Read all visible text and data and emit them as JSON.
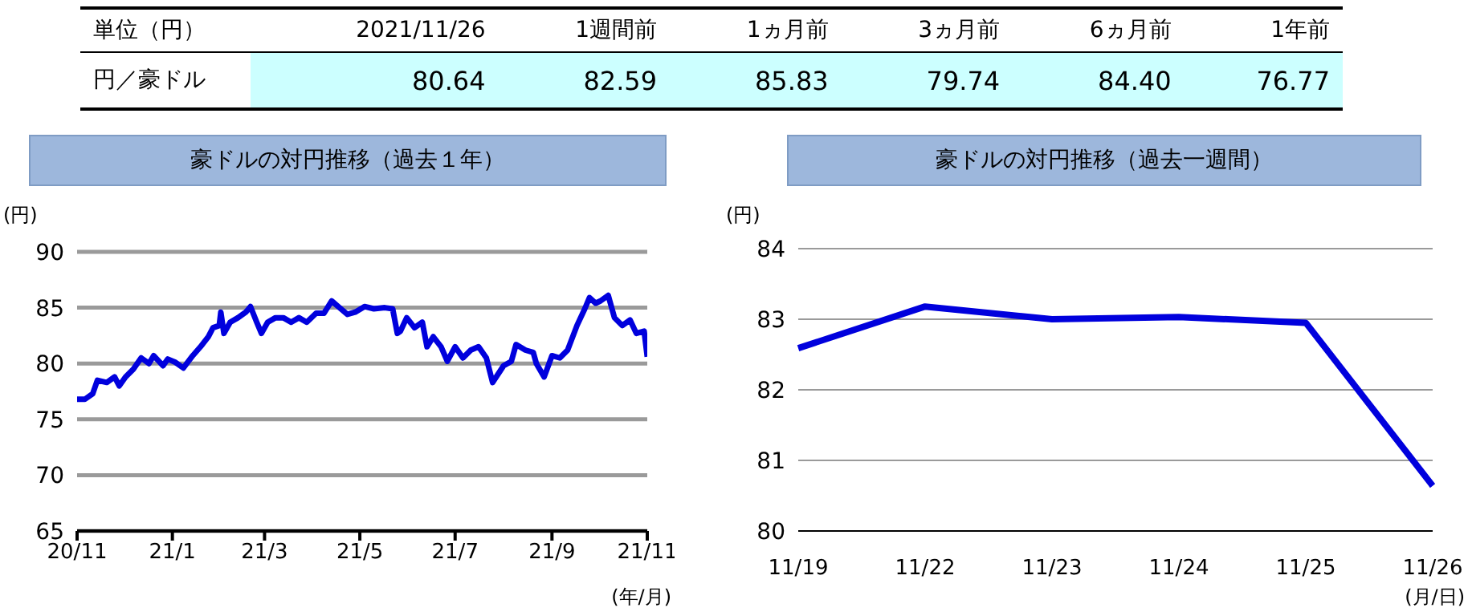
{
  "chart_data": [
    {
      "type": "other",
      "title": "単位（円）",
      "categories": [
        "2021/11/26",
        "1週間前",
        "1ヵ月前",
        "3ヵ月前",
        "6ヵ月前",
        "1年前"
      ],
      "series": [
        {
          "name": "円／豪ドル",
          "values": [
            80.64,
            82.59,
            85.83,
            79.74,
            84.4,
            76.77
          ],
          "value_labels": [
            "80.64",
            "82.59",
            "85.83",
            "79.74",
            "84.40",
            "76.77"
          ]
        }
      ]
    },
    {
      "type": "line",
      "title": "豪ドルの対円推移（過去１年）",
      "ylabel": "(円)",
      "xlabel": "(年/月)",
      "grid": "y",
      "x": [
        "2020-11-26",
        "2020-12-01",
        "2020-12-06",
        "2020-12-09",
        "2020-12-15",
        "2020-12-20",
        "2020-12-23",
        "2020-12-27",
        "2021-01-01",
        "2021-01-06",
        "2021-01-11",
        "2021-01-14",
        "2021-01-20",
        "2021-01-23",
        "2021-01-28",
        "2021-02-02",
        "2021-02-08",
        "2021-02-13",
        "2021-02-18",
        "2021-02-21",
        "2021-02-25",
        "2021-02-26",
        "2021-02-28",
        "2021-03-04",
        "2021-03-09",
        "2021-03-14",
        "2021-03-17",
        "2021-03-21",
        "2021-03-24",
        "2021-03-28",
        "2021-04-02",
        "2021-04-07",
        "2021-04-12",
        "2021-04-17",
        "2021-04-22",
        "2021-04-28",
        "2021-05-03",
        "2021-05-08",
        "2021-05-13",
        "2021-05-18",
        "2021-05-23",
        "2021-05-29",
        "2021-06-04",
        "2021-06-11",
        "2021-06-16",
        "2021-06-19",
        "2021-06-21",
        "2021-06-25",
        "2021-06-30",
        "2021-07-05",
        "2021-07-08",
        "2021-07-12",
        "2021-07-17",
        "2021-07-21",
        "2021-07-26",
        "2021-07-31",
        "2021-08-05",
        "2021-08-10",
        "2021-08-15",
        "2021-08-19",
        "2021-08-26",
        "2021-08-31",
        "2021-09-03",
        "2021-09-09",
        "2021-09-14",
        "2021-09-16",
        "2021-09-21",
        "2021-09-26",
        "2021-10-01",
        "2021-10-06",
        "2021-10-12",
        "2021-10-17",
        "2021-10-20",
        "2021-10-24",
        "2021-10-27",
        "2021-11-01",
        "2021-11-05",
        "2021-11-10",
        "2021-11-15",
        "2021-11-19",
        "2021-11-24",
        "2021-11-26"
      ],
      "series": [
        {
          "color": "#0000dd",
          "values": [
            76.8,
            76.8,
            77.3,
            78.5,
            78.3,
            78.8,
            78.0,
            78.8,
            79.5,
            80.5,
            80.0,
            80.7,
            79.8,
            80.4,
            80.1,
            79.6,
            80.7,
            81.5,
            82.4,
            83.2,
            83.4,
            84.6,
            82.7,
            83.7,
            84.1,
            84.6,
            85.1,
            83.7,
            82.7,
            83.7,
            84.1,
            84.1,
            83.7,
            84.1,
            83.7,
            84.5,
            84.5,
            85.6,
            85.0,
            84.4,
            84.6,
            85.1,
            84.9,
            85.0,
            84.9,
            82.7,
            82.9,
            84.1,
            83.2,
            83.7,
            81.5,
            82.4,
            81.5,
            80.2,
            81.5,
            80.5,
            81.2,
            81.5,
            80.5,
            78.3,
            79.8,
            80.2,
            81.7,
            81.2,
            81.0,
            80.0,
            78.8,
            80.7,
            80.5,
            81.2,
            83.4,
            84.9,
            85.9,
            85.4,
            85.6,
            86.1,
            84.1,
            83.4,
            83.9,
            82.7,
            82.9,
            80.6
          ]
        }
      ],
      "xlim": [
        "2020-11-26",
        "2021-11-26"
      ],
      "xticks": [
        {
          "value": "2020-11-26",
          "label": "20/11"
        },
        {
          "value": "2021-01-26",
          "label": "21/1"
        },
        {
          "value": "2021-03-26",
          "label": "21/3"
        },
        {
          "value": "2021-05-26",
          "label": "21/5"
        },
        {
          "value": "2021-07-26",
          "label": "21/7"
        },
        {
          "value": "2021-09-26",
          "label": "21/9"
        },
        {
          "value": "2021-11-26",
          "label": "21/11"
        }
      ],
      "ylim": [
        65,
        90
      ],
      "yticks": [
        65,
        70,
        75,
        80,
        85,
        90
      ]
    },
    {
      "type": "line",
      "title": "豪ドルの対円推移（過去一週間）",
      "ylabel": "(円)",
      "xlabel": "(月/日)",
      "grid": "y",
      "categories": [
        "11/19",
        "11/22",
        "11/23",
        "11/24",
        "11/25",
        "11/26"
      ],
      "series": [
        {
          "color": "#0000dd",
          "values": [
            82.59,
            83.18,
            83.0,
            83.03,
            82.95,
            80.64
          ]
        }
      ],
      "ylim": [
        80,
        84
      ],
      "yticks": [
        80,
        81,
        82,
        83,
        84
      ]
    }
  ]
}
